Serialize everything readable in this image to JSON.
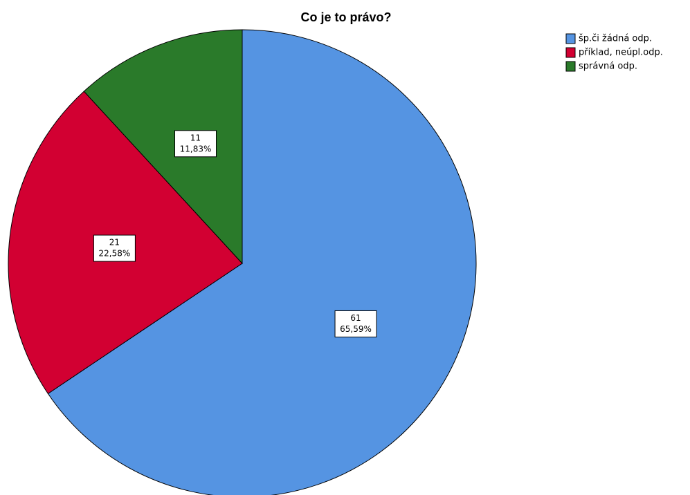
{
  "chart_data": {
    "type": "pie",
    "title": "Co je to právo?",
    "categories": [
      "šp.či žádná odp.",
      "příklad, neúpl.odp.",
      "správná odp."
    ],
    "values": [
      61,
      21,
      11
    ],
    "percent_labels": [
      "65,59%",
      "22,58%",
      "11,83%"
    ],
    "colors": [
      "#5594e2",
      "#d20032",
      "#2a7a2a"
    ],
    "legend": "top-right"
  }
}
